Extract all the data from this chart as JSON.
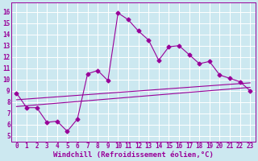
{
  "xlabel": "Windchill (Refroidissement éolien,°C)",
  "bg_color": "#cce8f0",
  "grid_color": "#ffffff",
  "line_color": "#990099",
  "x_ticks": [
    0,
    1,
    2,
    3,
    4,
    5,
    6,
    7,
    8,
    9,
    10,
    11,
    12,
    13,
    14,
    15,
    16,
    17,
    18,
    19,
    20,
    21,
    22,
    23
  ],
  "y_ticks": [
    5,
    6,
    7,
    8,
    9,
    10,
    11,
    12,
    13,
    14,
    15,
    16
  ],
  "ylim": [
    4.5,
    16.8
  ],
  "xlim": [
    -0.5,
    23.5
  ],
  "line1_x": [
    0,
    1,
    2,
    3,
    4,
    5,
    6,
    7,
    8,
    9,
    10,
    11,
    12,
    13,
    14,
    15,
    16,
    17,
    18,
    19,
    20,
    21,
    22,
    23
  ],
  "line1_y": [
    8.8,
    7.5,
    7.5,
    6.2,
    6.3,
    5.4,
    6.5,
    10.5,
    10.8,
    9.9,
    15.9,
    15.3,
    14.3,
    13.5,
    11.7,
    12.9,
    13.0,
    12.2,
    11.4,
    11.6,
    10.4,
    10.1,
    9.8,
    9.0
  ],
  "line2_x": [
    0,
    23
  ],
  "line2_y": [
    7.6,
    9.3
  ],
  "line3_x": [
    0,
    23
  ],
  "line3_y": [
    8.2,
    9.7
  ],
  "marker": "D",
  "markersize": 2.5,
  "linewidth": 0.8,
  "tick_fontsize": 5.5,
  "xlabel_fontsize": 6.5
}
